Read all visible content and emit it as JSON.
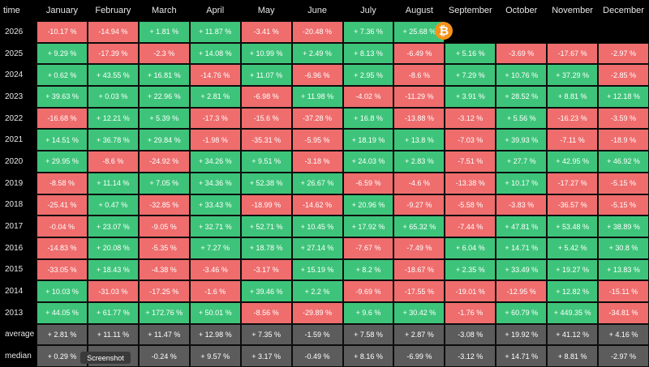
{
  "header": {
    "time": "time",
    "months": [
      "January",
      "February",
      "March",
      "April",
      "May",
      "June",
      "July",
      "August",
      "September",
      "October",
      "November",
      "December"
    ]
  },
  "rows": [
    {
      "label": "2026",
      "values": [
        "-10.17 %",
        "-14.94 %",
        "+ 1.81 %",
        "+ 11.87 %",
        "-3.41 %",
        "-20.48 %",
        "+ 7.36 %",
        "+ 25.68 %",
        "",
        "",
        "",
        ""
      ]
    },
    {
      "label": "2025",
      "values": [
        "+ 9.29 %",
        "-17.39 %",
        "-2.3 %",
        "+ 14.08 %",
        "+ 10.99 %",
        "+ 2.49 %",
        "+ 8.13 %",
        "-6.49 %",
        "+ 5.16 %",
        "-3.69 %",
        "-17.67 %",
        "-2.97 %"
      ]
    },
    {
      "label": "2024",
      "values": [
        "+ 0.62 %",
        "+ 43.55 %",
        "+ 16.81 %",
        "-14.76 %",
        "+ 11.07 %",
        "-6.96 %",
        "+ 2.95 %",
        "-8.6 %",
        "+ 7.29 %",
        "+ 10.76 %",
        "+ 37.29 %",
        "-2.85 %"
      ]
    },
    {
      "label": "2023",
      "values": [
        "+ 39.63 %",
        "+ 0.03 %",
        "+ 22.96 %",
        "+ 2.81 %",
        "-6.98 %",
        "+ 11.98 %",
        "-4.02 %",
        "-11.29 %",
        "+ 3.91 %",
        "+ 28.52 %",
        "+ 8.81 %",
        "+ 12.18 %"
      ]
    },
    {
      "label": "2022",
      "values": [
        "-16.68 %",
        "+ 12.21 %",
        "+ 5.39 %",
        "-17.3 %",
        "-15.6 %",
        "-37.28 %",
        "+ 16.8 %",
        "-13.88 %",
        "-3.12 %",
        "+ 5.56 %",
        "-16.23 %",
        "-3.59 %"
      ]
    },
    {
      "label": "2021",
      "values": [
        "+ 14.51 %",
        "+ 36.78 %",
        "+ 29.84 %",
        "-1.98 %",
        "-35.31 %",
        "-5.95 %",
        "+ 18.19 %",
        "+ 13.8 %",
        "-7.03 %",
        "+ 39.93 %",
        "-7.11 %",
        "-18.9 %"
      ]
    },
    {
      "label": "2020",
      "values": [
        "+ 29.95 %",
        "-8.6 %",
        "-24.92 %",
        "+ 34.26 %",
        "+ 9.51 %",
        "-3.18 %",
        "+ 24.03 %",
        "+ 2.83 %",
        "-7.51 %",
        "+ 27.7 %",
        "+ 42.95 %",
        "+ 46.92 %"
      ]
    },
    {
      "label": "2019",
      "values": [
        "-8.58 %",
        "+ 11.14 %",
        "+ 7.05 %",
        "+ 34.36 %",
        "+ 52.38 %",
        "+ 26.67 %",
        "-6.59 %",
        "-4.6 %",
        "-13.38 %",
        "+ 10.17 %",
        "-17.27 %",
        "-5.15 %"
      ]
    },
    {
      "label": "2018",
      "values": [
        "-25.41 %",
        "+ 0.47 %",
        "-32.85 %",
        "+ 33.43 %",
        "-18.99 %",
        "-14.62 %",
        "+ 20.96 %",
        "-9.27 %",
        "-5.58 %",
        "-3.83 %",
        "-36.57 %",
        "-5.15 %"
      ]
    },
    {
      "label": "2017",
      "values": [
        "-0.04 %",
        "+ 23.07 %",
        "-9.05 %",
        "+ 32.71 %",
        "+ 52.71 %",
        "+ 10.45 %",
        "+ 17.92 %",
        "+ 65.32 %",
        "-7.44 %",
        "+ 47.81 %",
        "+ 53.48 %",
        "+ 38.89 %"
      ]
    },
    {
      "label": "2016",
      "values": [
        "-14.83 %",
        "+ 20.08 %",
        "-5.35 %",
        "+ 7.27 %",
        "+ 18.78 %",
        "+ 27.14 %",
        "-7.67 %",
        "-7.49 %",
        "+ 6.04 %",
        "+ 14.71 %",
        "+ 5.42 %",
        "+ 30.8 %"
      ]
    },
    {
      "label": "2015",
      "values": [
        "-33.05 %",
        "+ 18.43 %",
        "-4.38 %",
        "-3.46 %",
        "-3.17 %",
        "+ 15.19 %",
        "+ 8.2 %",
        "-18.67 %",
        "+ 2.35 %",
        "+ 33.49 %",
        "+ 19.27 %",
        "+ 13.83 %"
      ]
    },
    {
      "label": "2014",
      "values": [
        "+ 10.03 %",
        "-31.03 %",
        "-17.25 %",
        "-1.6 %",
        "+ 39.46 %",
        "+ 2.2 %",
        "-9.69 %",
        "-17.55 %",
        "-19.01 %",
        "-12.95 %",
        "+ 12.82 %",
        "-15.11 %"
      ]
    },
    {
      "label": "2013",
      "values": [
        "+ 44.05 %",
        "+ 61.77 %",
        "+ 172.76 %",
        "+ 50.01 %",
        "-8.56 %",
        "-29.89 %",
        "+ 9.6 %",
        "+ 30.42 %",
        "-1.76 %",
        "+ 60.79 %",
        "+ 449.35 %",
        "-34.81 %"
      ]
    },
    {
      "label": "average",
      "values": [
        "+ 2.81 %",
        "+ 11.11 %",
        "+ 11.47 %",
        "+ 12.98 %",
        "+ 7.35 %",
        "-1.59 %",
        "+ 7.58 %",
        "+ 2.87 %",
        "-3.08 %",
        "+ 19.92 %",
        "+ 41.12 %",
        "+ 4.16 %"
      ]
    },
    {
      "label": "median",
      "values": [
        "+ 0.29 %",
        "+ 11.48 %",
        "-0.24 %",
        "+ 9.57 %",
        "+ 3.17 %",
        "-0.49 %",
        "+ 8.16 %",
        "-6.99 %",
        "-3.12 %",
        "+ 14.71 %",
        "+ 8.81 %",
        "-2.97 %"
      ]
    }
  ],
  "icon": {
    "name": "bitcoin-icon",
    "glyph": "₿",
    "color": "#f7931a"
  },
  "tooltip": {
    "text": "Screenshot"
  },
  "colors": {
    "positive": "#3ec47a",
    "negative": "#ef6d6d",
    "stat": "#5c5c5c"
  }
}
